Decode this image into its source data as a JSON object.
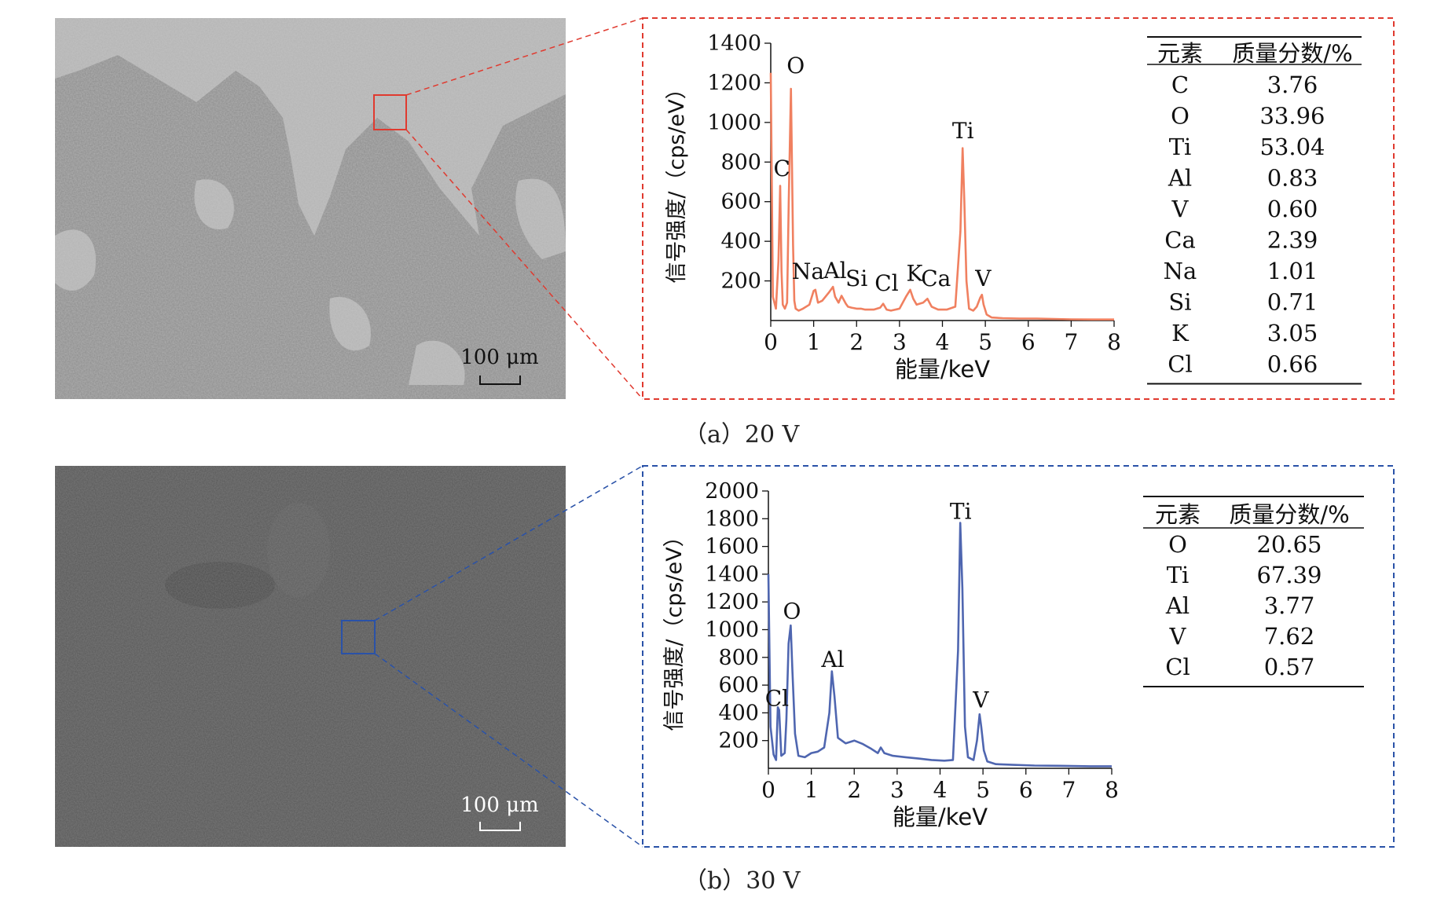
{
  "panels": [
    {
      "caption": "（a）20 V",
      "scalebar": "100 μm",
      "theme_color": "#e05a3a",
      "line_color": "#f08060",
      "box_color": "#e03a2f",
      "micrograph_style": "light-grey two-phase surface",
      "table": {
        "headers": [
          "元素",
          "质量分数/%"
        ],
        "rows": [
          [
            "C",
            "3.76"
          ],
          [
            "O",
            "33.96"
          ],
          [
            "Ti",
            "53.04"
          ],
          [
            "Al",
            "0.83"
          ],
          [
            "V",
            "0.60"
          ],
          [
            "Ca",
            "2.39"
          ],
          [
            "Na",
            "1.01"
          ],
          [
            "Si",
            "0.71"
          ],
          [
            "K",
            "3.05"
          ],
          [
            "Cl",
            "0.66"
          ]
        ]
      },
      "chart_data": {
        "type": "line",
        "xlabel": "能量/keV",
        "ylabel": "信号强度/（cps/eV）",
        "xlim": [
          0,
          8
        ],
        "ylim": [
          0,
          1400
        ],
        "xticks": [
          0,
          1,
          2,
          3,
          4,
          5,
          6,
          7,
          8
        ],
        "yticks": [
          200,
          400,
          600,
          800,
          1000,
          1200,
          1400
        ],
        "series": [
          {
            "values_x": [
              0,
              0.05,
              0.12,
              0.18,
              0.22,
              0.25,
              0.28,
              0.33,
              0.38,
              0.42,
              0.47,
              0.52,
              0.55,
              0.58,
              0.65,
              0.75,
              0.9,
              1.0,
              1.04,
              1.1,
              1.2,
              1.35,
              1.45,
              1.5,
              1.58,
              1.65,
              1.75,
              1.8,
              1.88,
              2.0,
              2.1,
              2.2,
              2.4,
              2.55,
              2.62,
              2.7,
              2.8,
              3.0,
              3.15,
              3.25,
              3.32,
              3.4,
              3.55,
              3.65,
              3.75,
              3.9,
              4.1,
              4.3,
              4.42,
              4.47,
              4.51,
              4.56,
              4.62,
              4.72,
              4.8,
              4.88,
              4.92,
              4.96,
              5.03,
              5.15,
              5.4,
              5.8,
              6.2,
              6.6,
              7.0,
              7.5,
              8.0
            ],
            "values_y": [
              1250,
              120,
              60,
              300,
              680,
              250,
              80,
              60,
              90,
              600,
              1170,
              380,
              100,
              60,
              50,
              60,
              80,
              150,
              155,
              90,
              100,
              140,
              170,
              120,
              90,
              125,
              85,
              70,
              65,
              60,
              60,
              55,
              55,
              65,
              85,
              55,
              50,
              60,
              120,
              155,
              110,
              80,
              90,
              110,
              70,
              55,
              55,
              70,
              450,
              870,
              600,
              200,
              60,
              50,
              70,
              115,
              130,
              80,
              30,
              15,
              12,
              10,
              10,
              8,
              6,
              5,
              5
            ]
          }
        ],
        "annotations": [
          {
            "text": "O",
            "x": 0.58,
            "y": 1250
          },
          {
            "text": "C",
            "x": 0.26,
            "y": 730
          },
          {
            "text": "Ti",
            "x": 4.48,
            "y": 920
          },
          {
            "text": "Na",
            "x": 0.87,
            "y": 210
          },
          {
            "text": "Al",
            "x": 1.5,
            "y": 215
          },
          {
            "text": "Si",
            "x": 2.0,
            "y": 175
          },
          {
            "text": "Cl",
            "x": 2.7,
            "y": 150
          },
          {
            "text": "K",
            "x": 3.35,
            "y": 200
          },
          {
            "text": "Ca",
            "x": 3.85,
            "y": 175
          },
          {
            "text": "V",
            "x": 4.95,
            "y": 175
          }
        ]
      }
    },
    {
      "caption": "（b）30 V",
      "scalebar": "100 μm",
      "theme_color": "#2a52a8",
      "line_color": "#4f66b0",
      "box_color": "#2a52a8",
      "micrograph_style": "dark-grey granular surface",
      "table": {
        "headers": [
          "元素",
          "质量分数/%"
        ],
        "rows": [
          [
            "O",
            "20.65"
          ],
          [
            "Ti",
            "67.39"
          ],
          [
            "Al",
            "3.77"
          ],
          [
            "V",
            "7.62"
          ],
          [
            "Cl",
            "0.57"
          ]
        ]
      },
      "chart_data": {
        "type": "line",
        "xlabel": "能量/keV",
        "ylabel": "信号强度/（cps/eV）",
        "xlim": [
          0,
          8
        ],
        "ylim": [
          0,
          2000
        ],
        "xticks": [
          0,
          1,
          2,
          3,
          4,
          5,
          6,
          7,
          8
        ],
        "yticks": [
          200,
          400,
          600,
          800,
          1000,
          1200,
          1400,
          1600,
          1800,
          2000
        ],
        "series": [
          {
            "values_x": [
              0,
              0.05,
              0.12,
              0.18,
              0.22,
              0.25,
              0.3,
              0.38,
              0.42,
              0.47,
              0.52,
              0.56,
              0.62,
              0.7,
              0.85,
              1.0,
              1.15,
              1.3,
              1.42,
              1.48,
              1.54,
              1.62,
              1.8,
              2.0,
              2.2,
              2.4,
              2.55,
              2.62,
              2.7,
              2.9,
              3.2,
              3.5,
              3.8,
              4.1,
              4.3,
              4.42,
              4.47,
              4.52,
              4.58,
              4.65,
              4.78,
              4.86,
              4.92,
              4.96,
              5.02,
              5.1,
              5.3,
              5.7,
              6.2,
              6.8,
              7.5,
              8.0
            ],
            "values_y": [
              1400,
              300,
              100,
              60,
              440,
              420,
              90,
              110,
              350,
              900,
              1030,
              700,
              250,
              90,
              80,
              110,
              120,
              150,
              400,
              700,
              520,
              220,
              180,
              200,
              175,
              140,
              110,
              150,
              110,
              90,
              80,
              70,
              60,
              55,
              60,
              850,
              1770,
              1300,
              300,
              80,
              60,
              200,
              390,
              300,
              130,
              50,
              30,
              25,
              20,
              18,
              15,
              15
            ]
          }
        ],
        "annotations": [
          {
            "text": "O",
            "x": 0.55,
            "y": 1080
          },
          {
            "text": "Cl",
            "x": 0.2,
            "y": 450
          },
          {
            "text": "Al",
            "x": 1.5,
            "y": 730
          },
          {
            "text": "Ti",
            "x": 4.48,
            "y": 1800
          },
          {
            "text": "V",
            "x": 4.95,
            "y": 440
          }
        ]
      }
    }
  ]
}
